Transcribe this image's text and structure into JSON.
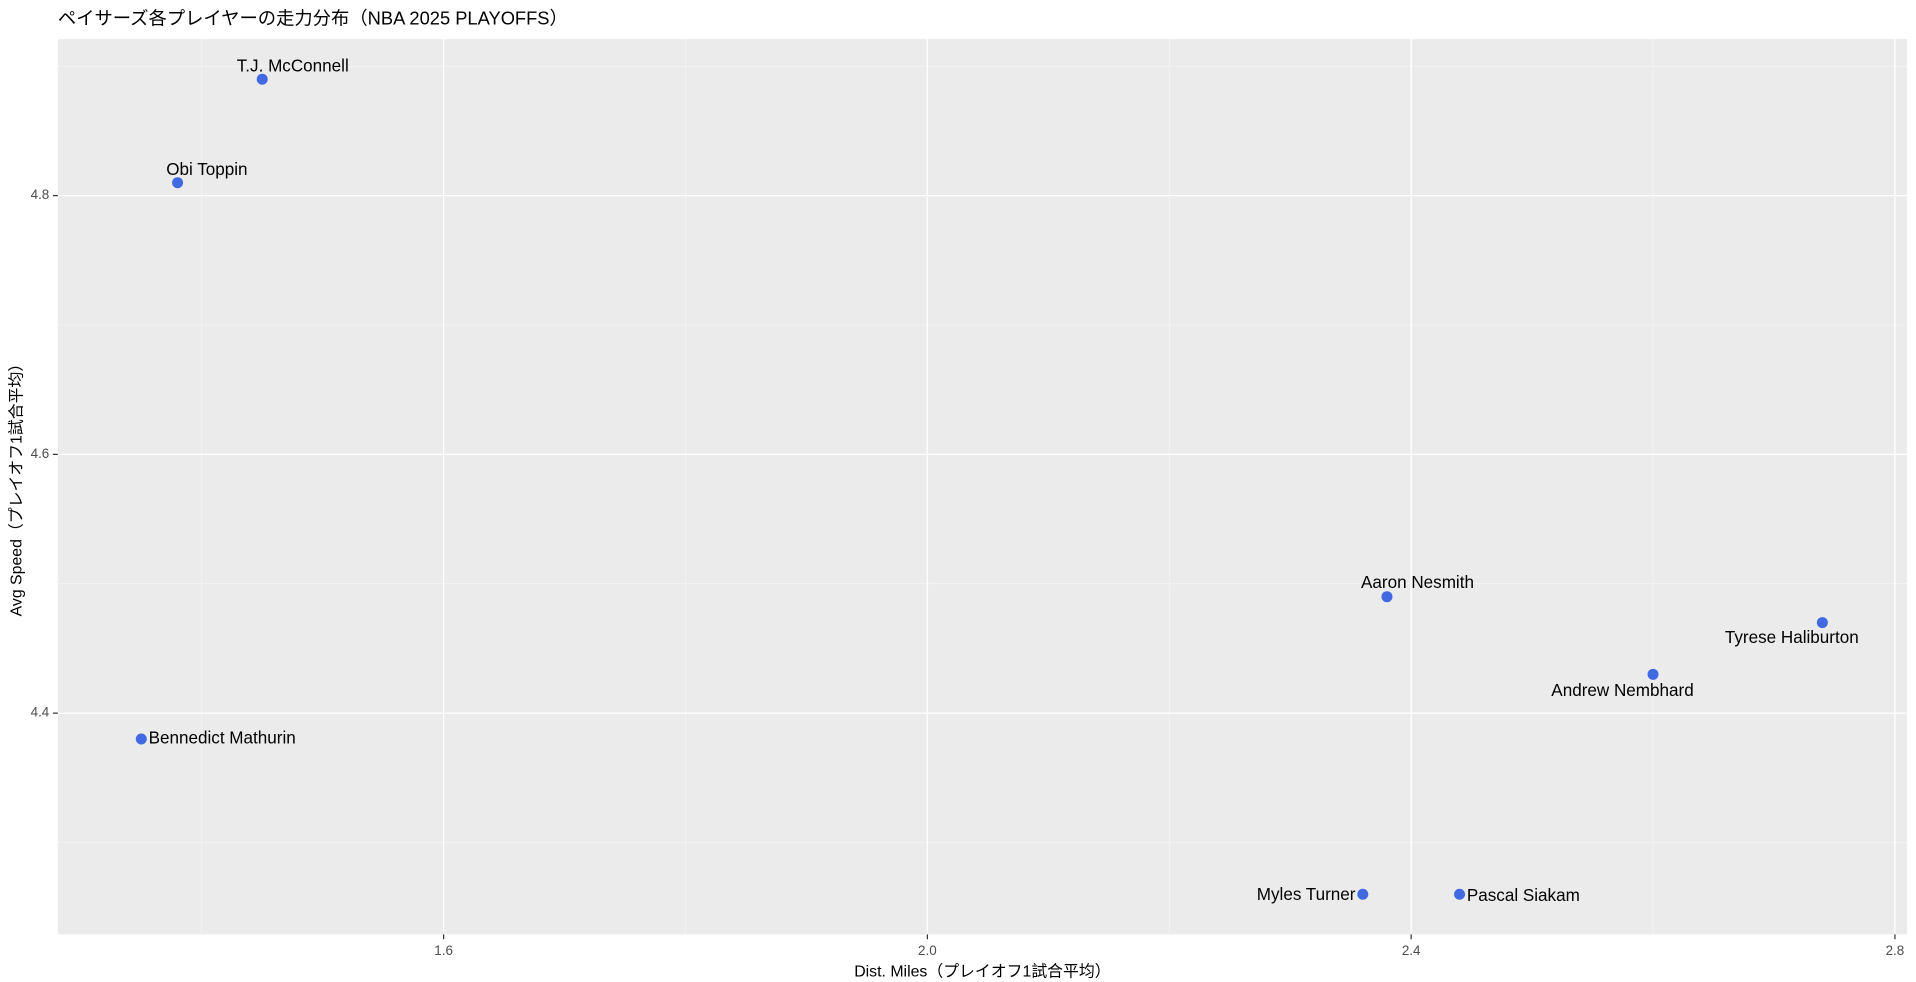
{
  "chart_data": {
    "type": "scatter",
    "title": "ペイサーズ各プレイヤーの走力分布（NBA 2025 PLAYOFFS）",
    "x_label": "Dist. Miles（プレイオフ1試合平均）",
    "y_label": "Avg Speed（プレイオフ1試合平均）",
    "labels": [
      "T.J. McConnell",
      "Obi Toppin",
      "Bennedict Mathurin",
      "Aaron Nesmith",
      "Tyrese Haliburton",
      "Andrew Nembhard",
      "Myles Turner",
      "Pascal Siakam"
    ],
    "x": [
      1.45,
      1.38,
      1.35,
      2.38,
      2.74,
      2.6,
      2.36,
      2.44
    ],
    "values": [
      4.89,
      4.81,
      4.38,
      4.49,
      4.47,
      4.43,
      4.26,
      4.26
    ],
    "color": "#4169e1",
    "xlim": [
      1.281,
      2.81
    ],
    "xticks": [
      1.6,
      {
        "value": 2,
        "label": "2.0"
      },
      2.4,
      2.8
    ],
    "ylim": [
      4.229,
      4.921
    ],
    "yticks": [
      4.4,
      4.6,
      4.8
    ],
    "grid": true
  }
}
